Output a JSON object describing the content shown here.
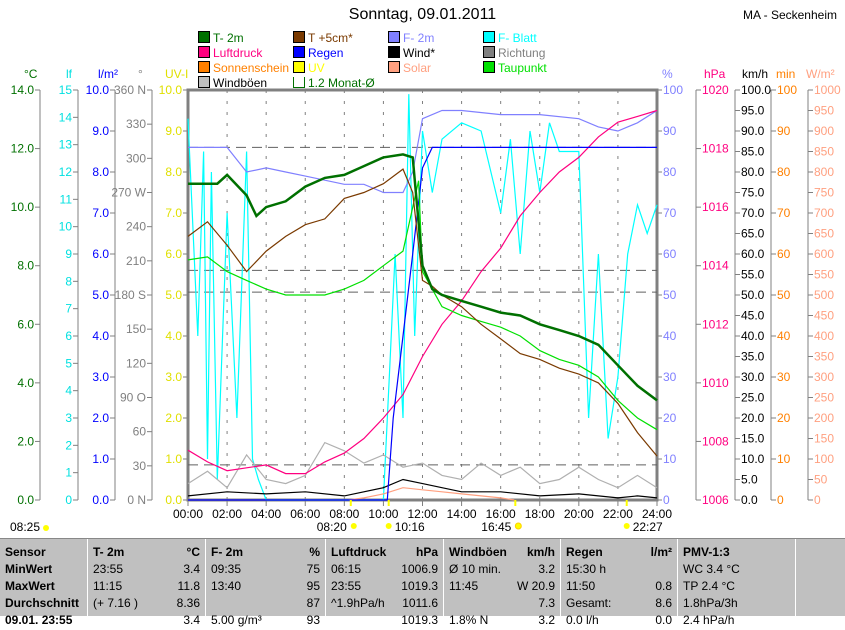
{
  "header": {
    "title": "Sonntag, 09.01.2011",
    "station": "MA - Seckenheim"
  },
  "legend": [
    {
      "label": "T- 2m",
      "color": "#007000"
    },
    {
      "label": "T +5cm*",
      "color": "#7a3a00"
    },
    {
      "label": "F- 2m",
      "color": "#8080ff"
    },
    {
      "label": "F- Blatt",
      "color": "#00ffff"
    },
    {
      "label": "Luftdruck",
      "color": "#ff0080"
    },
    {
      "label": "Regen",
      "color": "#0000ff"
    },
    {
      "label": "Wind*",
      "color": "#000000"
    },
    {
      "label": "Richtung",
      "color": "#808080"
    },
    {
      "label": "Sonnenschein",
      "color": "#ff8000"
    },
    {
      "label": "UV",
      "color": "#ffff00"
    },
    {
      "label": "Solar",
      "color": "#ffa080"
    },
    {
      "label": "Taupunkt",
      "color": "#00e000"
    },
    {
      "label": "Windböen",
      "color": "#c0c0c0"
    },
    {
      "label": "1.2 Monat-Ø",
      "color": "#007000"
    }
  ],
  "sun": {
    "sunrise_left": "08:25",
    "marks": [
      "08:20",
      "10:16",
      "16:45",
      "22:27"
    ]
  },
  "chart_data": {
    "type": "line",
    "title": "Sonntag, 09.01.2011",
    "x_ticks": [
      "00:00",
      "02:00",
      "04:00",
      "06:00",
      "08:00",
      "10:00",
      "12:00",
      "14:00",
      "16:00",
      "18:00",
      "20:00",
      "22:00",
      "24:00"
    ],
    "xlim": [
      0,
      24
    ],
    "axes": [
      {
        "unit": "°C",
        "color": "#007000",
        "ylim": [
          0,
          14
        ],
        "ticks": [
          "0.0",
          "2.0",
          "4.0",
          "6.0",
          "8.0",
          "10.0",
          "12.0",
          "14.0"
        ]
      },
      {
        "unit": "lf",
        "color": "#00e0e0",
        "ylim": [
          0,
          15
        ],
        "ticks": [
          "0",
          "1",
          "2",
          "3",
          "4",
          "5",
          "6",
          "7",
          "8",
          "9",
          "10",
          "11",
          "12",
          "13",
          "14",
          "15"
        ]
      },
      {
        "unit": "l/m²",
        "color": "#0000ff",
        "ylim": [
          0,
          10
        ],
        "ticks": [
          "0.0",
          "1.0",
          "2.0",
          "3.0",
          "4.0",
          "5.0",
          "6.0",
          "7.0",
          "8.0",
          "9.0",
          "10.0"
        ]
      },
      {
        "unit": "°",
        "color": "#808080",
        "ylim": [
          0,
          360
        ],
        "ticks": [
          "0   N",
          "30",
          "60",
          "90  O",
          "120",
          "150",
          "180 S",
          "210",
          "240",
          "270 W",
          "300",
          "330",
          "360 N"
        ]
      },
      {
        "unit": "UV-I",
        "color": "#e0e000",
        "ylim": [
          0,
          10
        ],
        "ticks": [
          "0.0",
          "1.0",
          "2.0",
          "3.0",
          "4.0",
          "5.0",
          "6.0",
          "7.0",
          "8.0",
          "9.0",
          "10.0"
        ]
      },
      {
        "unit": "%",
        "color": "#8080ff",
        "ylim": [
          0,
          100
        ],
        "ticks": [
          "0",
          "10",
          "20",
          "30",
          "40",
          "50",
          "60",
          "70",
          "80",
          "90",
          "100"
        ]
      },
      {
        "unit": "hPa",
        "color": "#ff0080",
        "ylim": [
          1006,
          1020
        ],
        "ticks": [
          "1006",
          "1008",
          "1010",
          "1012",
          "1014",
          "1016",
          "1018",
          "1020"
        ]
      },
      {
        "unit": "km/h",
        "color": "#000000",
        "ylim": [
          0,
          100
        ],
        "ticks": [
          "0.0",
          "5.0",
          "10.0",
          "15.0",
          "20.0",
          "25.0",
          "30.0",
          "35.0",
          "40.0",
          "45.0",
          "50.0",
          "55.0",
          "60.0",
          "65.0",
          "70.0",
          "75.0",
          "80.0",
          "85.0",
          "90.0",
          "95.0",
          "100.0"
        ]
      },
      {
        "unit": "min",
        "color": "#ff8000",
        "ylim": [
          0,
          100
        ],
        "ticks": [
          "0",
          "10",
          "20",
          "30",
          "40",
          "50",
          "60",
          "70",
          "80",
          "90",
          "100"
        ]
      },
      {
        "unit": "W/m²",
        "color": "#ffa080",
        "ylim": [
          0,
          1000
        ],
        "ticks": [
          "0",
          "50",
          "100",
          "150",
          "200",
          "250",
          "300",
          "350",
          "400",
          "450",
          "500",
          "550",
          "600",
          "650",
          "700",
          "750",
          "800",
          "850",
          "900",
          "950",
          "1000"
        ]
      }
    ],
    "series": [
      {
        "name": "F- Blatt",
        "axis": 5,
        "color": "#00ffff",
        "x": [
          0,
          0.5,
          0.8,
          1,
          1.2,
          1.5,
          2,
          2.5,
          3,
          3.3,
          3.6,
          4,
          5,
          6,
          7,
          8,
          9,
          10,
          10.3,
          10.6,
          11,
          11.3,
          11.6,
          12,
          12.5,
          13,
          14,
          15,
          16,
          16.5,
          17,
          17.5,
          18,
          18.5,
          19,
          20,
          20.5,
          21,
          21.5,
          22,
          22.5,
          23,
          23.5,
          24
        ],
        "y": [
          93,
          40,
          85,
          10,
          80,
          5,
          70,
          20,
          85,
          10,
          5,
          0,
          0,
          0,
          0,
          0,
          0,
          0,
          30,
          60,
          20,
          99,
          40,
          90,
          75,
          88,
          92,
          90,
          70,
          88,
          60,
          90,
          75,
          92,
          85,
          85,
          20,
          60,
          15,
          30,
          60,
          72,
          65,
          72
        ]
      },
      {
        "name": "Windböen",
        "axis": 7,
        "color": "#b0b0b0",
        "x": [
          0,
          1,
          2,
          3,
          4,
          5,
          6,
          7,
          8,
          9,
          10,
          11,
          12,
          13,
          14,
          15,
          16,
          17,
          18,
          19,
          20,
          21,
          22,
          23,
          24
        ],
        "y": [
          4,
          7,
          3,
          11,
          5,
          4,
          6,
          14,
          12,
          9,
          11,
          8,
          9,
          6,
          5,
          9,
          6,
          8,
          4,
          5,
          8,
          5,
          3,
          6,
          3
        ]
      },
      {
        "name": "Wind*",
        "axis": 7,
        "color": "#000000",
        "x": [
          0,
          2,
          4,
          6,
          8,
          10,
          11,
          12,
          13,
          14,
          16,
          18,
          20,
          22,
          23,
          24
        ],
        "y": [
          1,
          2,
          1.5,
          2,
          1,
          3,
          5,
          4,
          3,
          2,
          2,
          1,
          1.5,
          0.5,
          1,
          0.5
        ]
      },
      {
        "name": "Solar",
        "axis": 9,
        "color": "#ffa080",
        "x": [
          8.2,
          9,
          10,
          11,
          12,
          13,
          14,
          15,
          16,
          16.7
        ],
        "y": [
          0,
          5,
          15,
          30,
          25,
          20,
          15,
          10,
          5,
          0
        ]
      },
      {
        "name": "F- 2m",
        "axis": 5,
        "color": "#8080ff",
        "x": [
          0,
          2,
          3,
          4,
          5,
          6,
          7,
          8,
          9,
          10,
          11,
          11.5,
          12,
          13,
          14,
          16,
          18,
          20,
          21,
          22,
          23,
          24
        ],
        "y": [
          86,
          86,
          80,
          81,
          80,
          79,
          78,
          77,
          77,
          75,
          75,
          80,
          93,
          95,
          95,
          94,
          94,
          93,
          91,
          90,
          92,
          95
        ]
      },
      {
        "name": "Luftdruck",
        "axis": 6,
        "color": "#ff0080",
        "x": [
          0,
          1,
          2,
          4,
          5,
          6,
          7,
          8,
          9,
          10,
          11,
          12,
          13,
          14,
          15,
          16,
          17,
          18,
          19,
          20,
          21,
          22,
          23,
          24
        ],
        "y": [
          1007.7,
          1007.3,
          1007.0,
          1007.2,
          1006.9,
          1006.9,
          1007.3,
          1007.6,
          1008.1,
          1008.8,
          1009.6,
          1010.9,
          1012.0,
          1012.8,
          1013.8,
          1014.6,
          1015.7,
          1016.5,
          1017.2,
          1017.7,
          1018.4,
          1018.9,
          1019.1,
          1019.3
        ]
      },
      {
        "name": "Regen",
        "axis": 2,
        "color": "#0000ff",
        "x": [
          0,
          10.2,
          10.5,
          11,
          11.5,
          12,
          12.5,
          24
        ],
        "y": [
          0,
          0,
          2,
          4,
          6,
          8.1,
          8.6,
          8.6
        ]
      },
      {
        "name": "Taupunkt",
        "axis": 0,
        "color": "#00e000",
        "x": [
          0,
          1,
          2,
          3,
          4,
          5,
          6,
          7,
          8,
          9,
          10,
          11,
          11.8,
          12,
          13,
          14,
          15,
          16,
          17,
          18,
          19,
          20,
          21,
          22,
          23,
          24
        ],
        "y": [
          8.2,
          8.3,
          7.8,
          7.5,
          7.2,
          7.0,
          7.0,
          7.0,
          7.2,
          7.5,
          8.0,
          8.5,
          10.9,
          7.8,
          6.6,
          6.3,
          6.1,
          5.9,
          5.6,
          5.1,
          4.8,
          4.6,
          4.2,
          3.4,
          2.8,
          2.4
        ]
      },
      {
        "name": "T +5cm*",
        "axis": 0,
        "color": "#7a3a00",
        "x": [
          0,
          1,
          2,
          3,
          4,
          5,
          6,
          7,
          8,
          9,
          10,
          11,
          11.5,
          12,
          12.5,
          13,
          14,
          15,
          16,
          17,
          18,
          19,
          20,
          21,
          22,
          23,
          24
        ],
        "y": [
          9.0,
          9.5,
          8.7,
          7.8,
          8.5,
          9.0,
          9.4,
          9.6,
          10.3,
          10.5,
          10.8,
          11.3,
          10.5,
          7.5,
          7.3,
          7.0,
          6.6,
          6.0,
          5.5,
          5.0,
          4.8,
          4.5,
          4.3,
          4.0,
          3.3,
          2.3,
          1.5
        ]
      },
      {
        "name": "T- 2m",
        "axis": 0,
        "color": "#007000",
        "x": [
          0,
          1.5,
          2,
          3,
          3.5,
          4,
          5,
          6,
          7,
          8,
          9,
          10,
          11,
          11.5,
          12,
          12.5,
          13,
          14,
          15,
          16,
          17,
          18,
          19,
          20,
          21,
          22,
          23,
          24
        ],
        "y": [
          10.8,
          10.8,
          11.1,
          10.4,
          9.7,
          10.0,
          10.2,
          10.7,
          11.0,
          11.1,
          11.4,
          11.7,
          11.8,
          11.7,
          8.0,
          7.2,
          7.0,
          6.8,
          6.6,
          6.4,
          6.3,
          6.0,
          5.8,
          5.6,
          5.3,
          4.6,
          3.9,
          3.4
        ]
      }
    ],
    "monthly_avg": [
      {
        "axis": 0,
        "value": 7.1
      },
      {
        "axis": 0,
        "value": 1.2
      },
      {
        "axis": 5,
        "value": 86
      },
      {
        "axis": 5,
        "value": 56
      }
    ]
  },
  "table": {
    "columns": [
      {
        "head": [
          "Sensor",
          ""
        ],
        "rows": [
          [
            "MinWert",
            ""
          ],
          [
            "MaxWert",
            ""
          ],
          [
            "Durchschnitt",
            ""
          ],
          [
            "09.01. 23:55",
            ""
          ]
        ],
        "bold": true
      },
      {
        "head": [
          "T- 2m",
          "°C"
        ],
        "rows": [
          [
            "23:55",
            "3.4"
          ],
          [
            "11:15",
            "11.8"
          ],
          [
            "(+ 7.16 )",
            "8.36"
          ],
          [
            "",
            "3.4"
          ]
        ]
      },
      {
        "head": [
          "F- 2m",
          "%"
        ],
        "rows": [
          [
            "09:35",
            "75"
          ],
          [
            "13:40",
            "95"
          ],
          [
            "",
            "87"
          ],
          [
            "5.00 g/m³",
            "93"
          ]
        ]
      },
      {
        "head": [
          "Luftdruck",
          "hPa"
        ],
        "rows": [
          [
            "06:15",
            "1006.9"
          ],
          [
            "23:55",
            "1019.3"
          ],
          [
            "^1.9hPa/h",
            "1011.6"
          ],
          [
            "",
            "1019.3"
          ]
        ]
      },
      {
        "head": [
          "Windböen",
          "km/h"
        ],
        "rows": [
          [
            "Ø 10 min.",
            "3.2"
          ],
          [
            "11:45",
            "W 20.9"
          ],
          [
            "",
            "7.3"
          ],
          [
            "1.8% N",
            "3.2"
          ]
        ]
      },
      {
        "head": [
          "Regen",
          "l/m²"
        ],
        "rows": [
          [
            "15:30 h",
            ""
          ],
          [
            "11:50",
            "0.8"
          ],
          [
            "Gesamt:",
            "8.6"
          ],
          [
            "0.0 l/h",
            "0.0"
          ]
        ]
      },
      {
        "head": [
          "PMV-1:3",
          ""
        ],
        "rows": [
          [
            "WC 3.4 °C",
            ""
          ],
          [
            "TP 2.4 °C",
            ""
          ],
          [
            "1.8hPa/3h",
            ""
          ],
          [
            "2.4 hPa/h",
            ""
          ]
        ]
      }
    ]
  }
}
